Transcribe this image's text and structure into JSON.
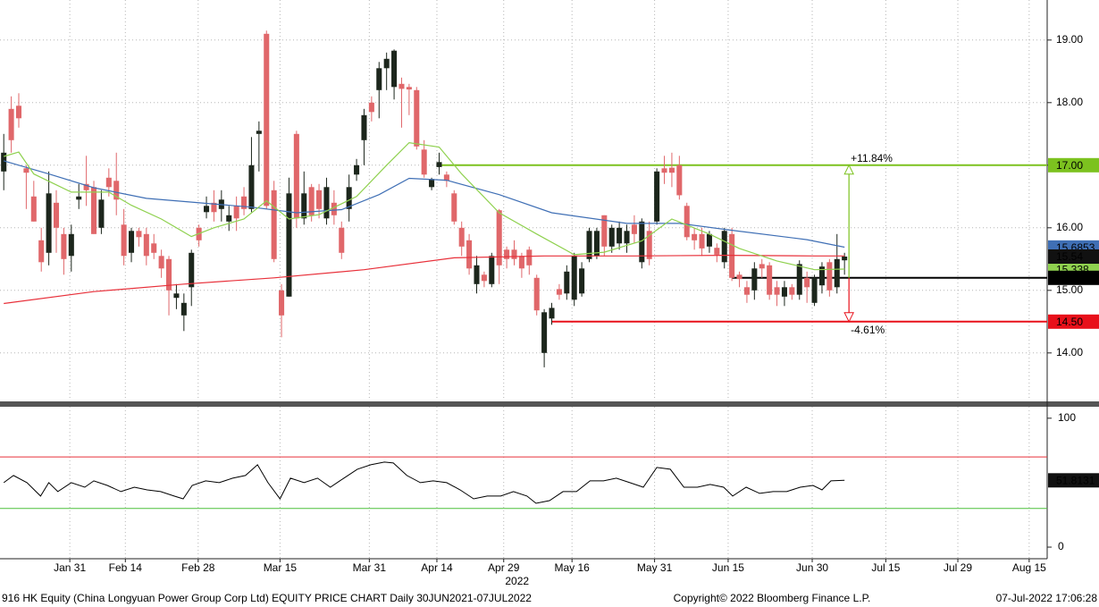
{
  "chart_data": {
    "type": "candlestick",
    "title": "916 HK Equity (China Longyuan Power Group Corp Ltd) EQUITY PRICE CHART  Daily 30JUN2021-07JUL2022",
    "copyright": "Copyright© 2022 Bloomberg Finance L.P.",
    "timestamp": "07-Jul-2022 17:06:28",
    "year_label": "2022",
    "xlim": [
      -0.5,
      139
    ],
    "xticks": [
      {
        "value": 8.8,
        "label": "Jan 31"
      },
      {
        "value": 16.2,
        "label": "Feb 14"
      },
      {
        "value": 25.9,
        "label": "Feb 28"
      },
      {
        "value": 36.8,
        "label": "Mar 15"
      },
      {
        "value": 48.7,
        "label": "Mar 31"
      },
      {
        "value": 57.7,
        "label": "Apr 14"
      },
      {
        "value": 66.6,
        "label": "Apr 29"
      },
      {
        "value": 75.7,
        "label": "May 16"
      },
      {
        "value": 86.7,
        "label": "May 31"
      },
      {
        "value": 96.5,
        "label": "Jun 15"
      },
      {
        "value": 107.7,
        "label": "Jun 30"
      },
      {
        "value": 117.5,
        "label": "Jul 15"
      },
      {
        "value": 127.1,
        "label": "Jul 29"
      },
      {
        "value": 136.6,
        "label": "Aug 15"
      }
    ],
    "ylim": [
      13.24,
      19.64
    ],
    "yticks": [
      {
        "value": 14,
        "label": "14.00"
      },
      {
        "value": 15,
        "label": "15.00"
      },
      {
        "value": 16,
        "label": "16.00"
      },
      {
        "value": 17,
        "label": "17.00"
      },
      {
        "value": 18,
        "label": "18.00"
      },
      {
        "value": 19,
        "label": "19.00"
      }
    ],
    "grid": true,
    "up_color": "#1c261c",
    "down_color": "#e0676a",
    "open": [
      16.9,
      17.9,
      17.95,
      16.95,
      16.5,
      15.8,
      15.6,
      16.4,
      15.9,
      15.55,
      16.45,
      16.7,
      16.65,
      16.0,
      16.8,
      16.75,
      16.05,
      15.6,
      15.95,
      15.9,
      15.75,
      15.55,
      15.5,
      14.88,
      14.6,
      15.05,
      16.0,
      16.25,
      16.4,
      16.3,
      16.1,
      16.35,
      16.5,
      16.3,
      17.5,
      19.1,
      16.6,
      15.0,
      14.9,
      17.5,
      16.15,
      16.65,
      16.6,
      16.15,
      16.4,
      16.0,
      16.3,
      16.85,
      17.4,
      18.0,
      18.2,
      18.55,
      18.25,
      18.3,
      18.25,
      18.2,
      17.25,
      16.65,
      16.97,
      16.85,
      16.55,
      16.0,
      15.8,
      15.1,
      15.25,
      15.1,
      16.28,
      15.65,
      15.65,
      15.55,
      15.65,
      15.2,
      14.0,
      14.55,
      15.02,
      14.95,
      14.85,
      14.95,
      15.5,
      15.55,
      16.2,
      15.7,
      15.75,
      15.75,
      16.05,
      15.45,
      15.95,
      16.1,
      16.95,
      16.96,
      17.0,
      16.35,
      15.9,
      15.9,
      15.7,
      15.68,
      15.45,
      15.9,
      15.25,
      15.05,
      15.0,
      15.42,
      15.4,
      15.05,
      14.9,
      15.05,
      14.93,
      15.2,
      14.8,
      15.08,
      15.45,
      15.05,
      15.48
    ],
    "high": [
      17.5,
      18.1,
      18.15,
      17.0,
      16.75,
      16.0,
      16.9,
      16.6,
      16.0,
      16.05,
      16.7,
      17.15,
      16.75,
      16.6,
      16.95,
      17.2,
      16.3,
      16.0,
      16.0,
      16.0,
      15.9,
      15.65,
      15.55,
      15.1,
      14.95,
      15.65,
      16.05,
      16.5,
      16.6,
      16.6,
      16.35,
      16.5,
      16.65,
      17.45,
      17.7,
      19.15,
      16.75,
      15.1,
      16.8,
      17.55,
      16.9,
      16.7,
      16.7,
      16.8,
      16.6,
      16.1,
      16.85,
      17.1,
      17.9,
      18.1,
      18.65,
      18.8,
      18.85,
      18.4,
      18.3,
      18.25,
      17.4,
      16.8,
      17.2,
      16.9,
      16.6,
      16.1,
      15.9,
      15.55,
      15.3,
      15.6,
      16.3,
      15.7,
      15.8,
      15.6,
      15.7,
      15.25,
      14.7,
      14.8,
      15.1,
      15.4,
      15.6,
      15.45,
      16.0,
      16.0,
      16.2,
      16.05,
      16.1,
      16.05,
      16.2,
      16.15,
      16.1,
      16.95,
      17.15,
      17.2,
      17.15,
      16.4,
      16.0,
      16.0,
      15.95,
      15.75,
      16.0,
      16.0,
      15.3,
      15.15,
      15.45,
      15.5,
      15.45,
      15.15,
      15.15,
      15.1,
      15.48,
      15.3,
      15.25,
      15.45,
      15.5,
      15.9,
      15.6
    ],
    "low": [
      16.6,
      17.2,
      17.6,
      16.3,
      16.1,
      15.3,
      15.4,
      15.6,
      15.25,
      15.3,
      16.3,
      16.35,
      15.9,
      15.9,
      16.5,
      16.2,
      15.4,
      15.45,
      15.7,
      15.4,
      15.5,
      15.2,
      14.6,
      14.7,
      14.35,
      14.75,
      15.7,
      16.15,
      16.1,
      16.1,
      15.95,
      15.95,
      16.2,
      16.25,
      16.9,
      16.3,
      15.45,
      14.25,
      14.9,
      16.0,
      16.05,
      16.1,
      16.15,
      16.05,
      16.05,
      15.5,
      16.1,
      16.75,
      17.0,
      17.7,
      17.75,
      18.2,
      18.05,
      17.6,
      17.8,
      17.25,
      16.8,
      16.6,
      16.85,
      16.65,
      16.05,
      15.55,
      15.25,
      14.95,
      15.05,
      15.05,
      15.1,
      15.35,
      15.4,
      15.2,
      15.25,
      14.6,
      13.77,
      14.45,
      14.85,
      14.85,
      14.75,
      14.9,
      15.45,
      15.5,
      15.55,
      15.6,
      15.65,
      15.6,
      15.75,
      15.35,
      15.4,
      16.05,
      16.7,
      16.65,
      16.45,
      15.8,
      15.65,
      15.55,
      15.6,
      15.45,
      15.35,
      15.15,
      15.05,
      14.8,
      14.85,
      15.2,
      14.85,
      14.75,
      14.75,
      14.85,
      14.85,
      14.8,
      14.75,
      14.95,
      14.9,
      14.95,
      15.25
    ],
    "close": [
      17.2,
      17.4,
      17.75,
      16.88,
      16.1,
      15.45,
      16.55,
      16.0,
      15.5,
      15.9,
      16.5,
      16.6,
      15.9,
      16.45,
      16.65,
      16.45,
      15.55,
      15.95,
      15.85,
      15.55,
      15.6,
      15.35,
      15.0,
      14.95,
      14.8,
      15.6,
      15.8,
      16.35,
      16.25,
      16.45,
      16.2,
      16.15,
      16.3,
      17.0,
      17.55,
      16.35,
      15.5,
      14.6,
      16.55,
      16.15,
      16.55,
      16.2,
      16.3,
      16.65,
      16.2,
      15.6,
      16.65,
      17.0,
      17.8,
      17.85,
      18.55,
      18.7,
      18.83,
      18.22,
      18.21,
      17.3,
      16.85,
      16.78,
      17.05,
      16.75,
      16.1,
      15.7,
      15.35,
      15.4,
      15.15,
      15.55,
      15.4,
      15.5,
      15.5,
      15.35,
      15.4,
      14.68,
      14.65,
      14.72,
      14.93,
      15.3,
      15.55,
      15.35,
      15.95,
      15.95,
      15.7,
      16.0,
      16.0,
      15.95,
      15.9,
      16.1,
      15.5,
      16.9,
      16.88,
      16.88,
      16.52,
      15.85,
      15.8,
      15.67,
      15.9,
      15.57,
      15.95,
      15.2,
      15.18,
      14.93,
      15.35,
      15.35,
      14.93,
      14.93,
      15.05,
      14.93,
      15.42,
      15.05,
      15.2,
      15.38,
      15.0,
      15.5,
      15.54
    ],
    "lines": [
      {
        "color": "#e8303a",
        "x": [
          0,
          12,
          24,
          36,
          48,
          60,
          72,
          84,
          96,
          108,
          112
        ],
        "values": [
          14.79,
          14.98,
          15.1,
          15.2,
          15.33,
          15.52,
          15.55,
          15.55,
          15.56,
          15.55,
          15.55
        ]
      },
      {
        "color": "#3f6fb5",
        "x": [
          0,
          6,
          12,
          19,
          27,
          33,
          39,
          45,
          50,
          54,
          59,
          66,
          73,
          83,
          90,
          97,
          107,
          112
        ],
        "values": [
          17.07,
          16.86,
          16.64,
          16.47,
          16.39,
          16.33,
          16.24,
          16.29,
          16.53,
          16.79,
          16.76,
          16.53,
          16.24,
          16.07,
          16.07,
          15.96,
          15.81,
          15.69
        ],
        "end_label": {
          "value": 15.6853,
          "label": "15.6853"
        }
      },
      {
        "color": "#8fd14f",
        "x": [
          0,
          2,
          4,
          9,
          14,
          17,
          21,
          25,
          28,
          32,
          35,
          38,
          42,
          47,
          51,
          54,
          58,
          61,
          66,
          71,
          76,
          80,
          85,
          89,
          94,
          98,
          103,
          108,
          112
        ],
        "values": [
          17.14,
          17.21,
          16.86,
          16.57,
          16.57,
          16.36,
          16.14,
          15.86,
          16.0,
          16.14,
          16.43,
          16.14,
          16.21,
          16.5,
          17.0,
          17.36,
          17.29,
          16.86,
          16.24,
          15.9,
          15.57,
          15.61,
          15.79,
          16.14,
          15.9,
          15.67,
          15.47,
          15.33,
          15.34
        ],
        "end_label": {
          "value": 15.338,
          "label": "15.338"
        }
      }
    ],
    "last_price": {
      "value": 15.54,
      "label": "15.54"
    },
    "levels": [
      {
        "value": 17.0,
        "label": "17.00",
        "color": "#7cc21f",
        "start": 58,
        "text_color": "#000000"
      },
      {
        "value": 15.2,
        "label": "15.20",
        "color": "#000000",
        "start": 97,
        "text_color": "#ffffff"
      },
      {
        "value": 14.5,
        "label": "14.50",
        "color": "#e8101a",
        "start": 73,
        "text_color": "#ffffff"
      }
    ],
    "upside": "+11.84%",
    "downside": "-4.61%",
    "rsi": {
      "ylim": [
        -9,
        108.9
      ],
      "yticks": [
        0,
        100
      ],
      "overbought": 70,
      "oversold": 30,
      "color": "#000000",
      "x": [
        0,
        1.3,
        3.1,
        4.9,
        6,
        7.2,
        9,
        10.8,
        12,
        13.8,
        15.6,
        17.4,
        19.1,
        20.9,
        22.7,
        23.9,
        25.1,
        26.9,
        28.7,
        30.5,
        32.2,
        33.8,
        35.2,
        36.8,
        38.2,
        40,
        41.8,
        43.5,
        45.3,
        47.1,
        48.9,
        50.7,
        51.9,
        53.7,
        55.5,
        57.2,
        59,
        60.8,
        62.6,
        64.4,
        66.2,
        67.9,
        69.7,
        70.9,
        72.7,
        74.5,
        76.3,
        78.1,
        79.9,
        81.6,
        83.4,
        85.2,
        87,
        88.8,
        90.6,
        92.4,
        94.1,
        95.9,
        97.1,
        98.9,
        100.7,
        102.5,
        104.3,
        106.1,
        107.8,
        109,
        110.2,
        112
      ],
      "values": [
        50.0,
        55.6,
        50.0,
        39.6,
        50.0,
        43.1,
        50.0,
        46.5,
        51.4,
        47.9,
        43.1,
        46.5,
        44.4,
        43.1,
        39.6,
        37.5,
        47.9,
        51.4,
        50.0,
        53.5,
        55.6,
        63.9,
        50.0,
        37.5,
        53.5,
        50.0,
        53.5,
        46.5,
        53.5,
        60.4,
        63.9,
        66.0,
        65.3,
        55.6,
        50.0,
        51.4,
        50.0,
        44.4,
        37.5,
        39.6,
        39.6,
        43.1,
        39.6,
        34.0,
        36.1,
        43.1,
        43.1,
        51.4,
        51.4,
        53.5,
        50.0,
        46.5,
        61.8,
        60.4,
        46.5,
        46.5,
        48.6,
        46.5,
        39.6,
        46.5,
        41.7,
        43.1,
        43.1,
        46.5,
        47.9,
        44.4,
        51.4,
        51.81
      ],
      "last": {
        "value": 51.8131,
        "label": "51.8131"
      }
    }
  }
}
